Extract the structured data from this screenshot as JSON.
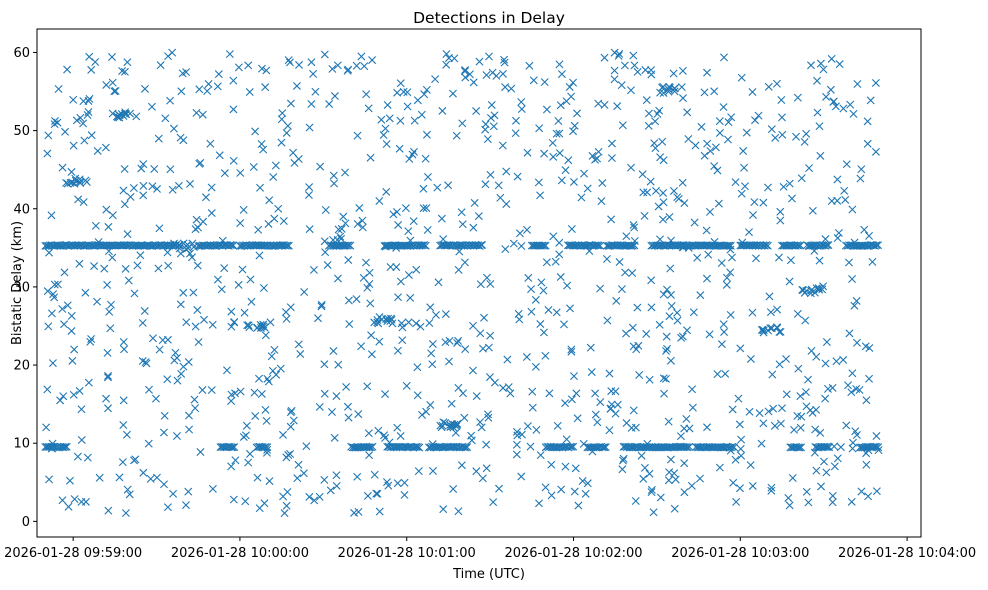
{
  "chart_data": {
    "type": "scatter",
    "title": "Detections in Delay",
    "xlabel": "Time (UTC)",
    "ylabel": "Bistatic Delay (km)",
    "marker": "x",
    "color": "#1f77b4",
    "grid": false,
    "legend": "none",
    "xlim": [
      "2026-01-28 09:58:47",
      "2026-01-28 10:04:05"
    ],
    "ylim": [
      -2,
      63
    ],
    "x_ticks": [
      "2026-01-28 09:59:00",
      "2026-01-28 10:00:00",
      "2026-01-28 10:01:00",
      "2026-01-28 10:02:00",
      "2026-01-28 10:03:00",
      "2026-01-28 10:04:00"
    ],
    "y_ticks": [
      0,
      10,
      20,
      30,
      40,
      50,
      60
    ],
    "data_span": {
      "start": "2026-01-28 09:58:50",
      "end": "2026-01-28 10:03:50"
    },
    "bands": [
      {
        "y": 35.3,
        "segments": [
          [
            "09:58:50",
            "09:59:37"
          ],
          [
            "09:59:45",
            "09:59:58"
          ],
          [
            "10:00:00",
            "10:00:18"
          ],
          [
            "10:00:32",
            "10:00:40"
          ],
          [
            "10:00:52",
            "10:01:07"
          ],
          [
            "10:01:12",
            "10:01:27"
          ],
          [
            "10:01:45",
            "10:01:50"
          ],
          [
            "10:01:58",
            "10:02:10"
          ],
          [
            "10:02:12",
            "10:02:22"
          ],
          [
            "10:02:28",
            "10:02:57"
          ],
          [
            "10:03:00",
            "10:03:10"
          ],
          [
            "10:03:15",
            "10:03:22"
          ],
          [
            "10:03:24",
            "10:03:32"
          ],
          [
            "10:03:38",
            "10:03:50"
          ]
        ]
      },
      {
        "y": 9.5,
        "segments": [
          [
            "09:58:50",
            "09:58:58"
          ],
          [
            "09:59:53",
            "09:59:58"
          ],
          [
            "10:00:06",
            "10:00:10"
          ],
          [
            "10:00:40",
            "10:00:48"
          ],
          [
            "10:00:53",
            "10:01:05"
          ],
          [
            "10:01:08",
            "10:01:22"
          ],
          [
            "10:01:50",
            "10:02:00"
          ],
          [
            "10:02:05",
            "10:02:12"
          ],
          [
            "10:02:18",
            "10:02:42"
          ],
          [
            "10:02:44",
            "10:02:58"
          ],
          [
            "10:03:18",
            "10:03:22"
          ],
          [
            "10:03:27",
            "10:03:32"
          ],
          [
            "10:03:43",
            "10:03:50"
          ]
        ]
      }
    ],
    "clusters": [
      {
        "x": "09:59:01",
        "y": 43.5
      },
      {
        "x": "09:59:17",
        "y": 52.0
      },
      {
        "x": "09:59:40",
        "y": 35.2
      },
      {
        "x": "10:00:05",
        "y": 25.0
      },
      {
        "x": "10:00:52",
        "y": 25.7
      },
      {
        "x": "10:01:15",
        "y": 12.3
      },
      {
        "x": "10:02:35",
        "y": 55.2
      },
      {
        "x": "10:03:11",
        "y": 24.5
      },
      {
        "x": "10:03:26",
        "y": 29.5
      }
    ],
    "scattered_count": 1100
  }
}
